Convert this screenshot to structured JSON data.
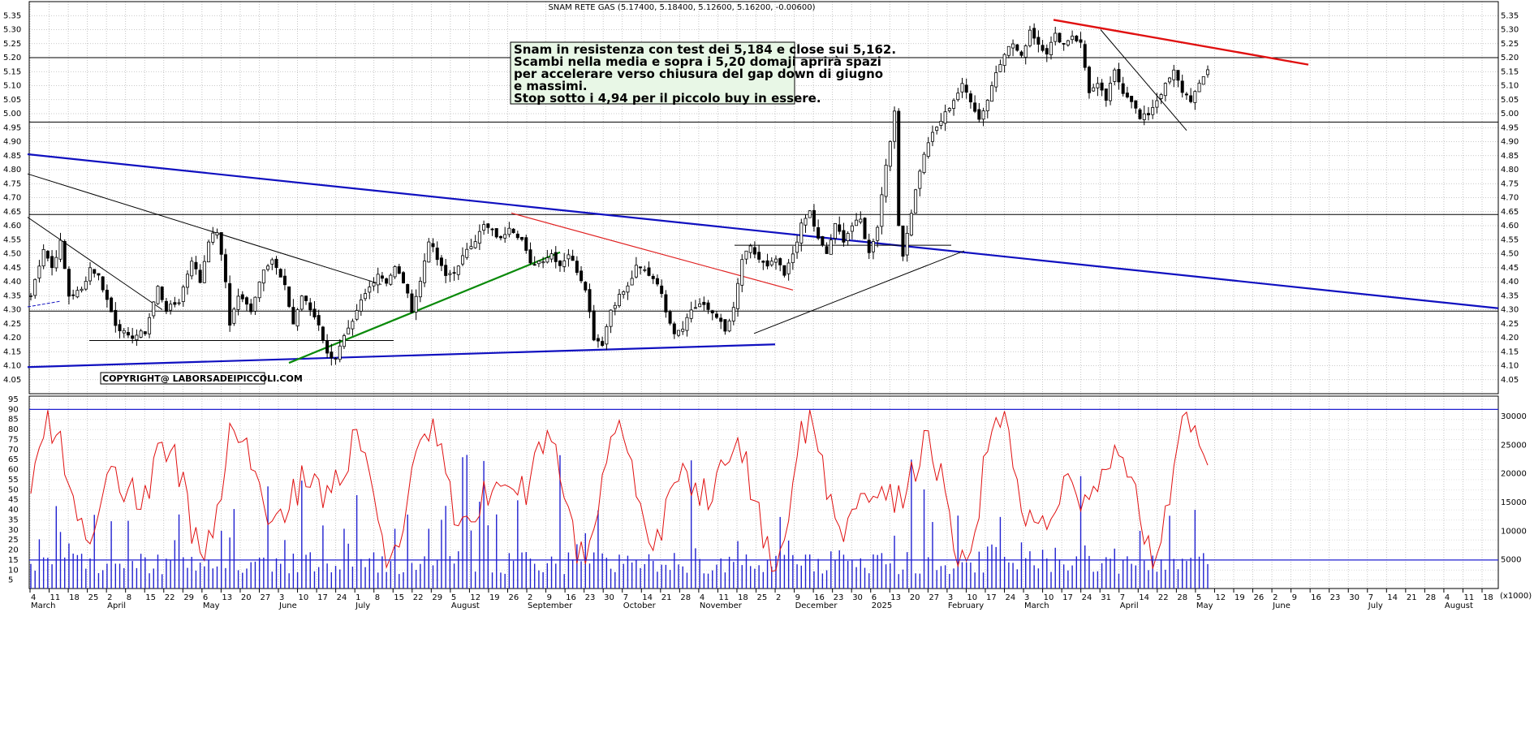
{
  "chart_data": [
    {
      "type": "candlestick",
      "title": "SNAM RETE GAS (5.17400, 5.18400, 5.12600, 5.16200, -0.00600)",
      "ylim": [
        4.0,
        5.4
      ],
      "yticks": [
        4.05,
        4.1,
        4.15,
        4.2,
        4.25,
        4.3,
        4.35,
        4.4,
        4.45,
        4.5,
        4.55,
        4.6,
        4.65,
        4.7,
        4.75,
        4.8,
        4.85,
        4.9,
        4.95,
        5.0,
        5.05,
        5.1,
        5.15,
        5.2,
        5.25,
        5.3,
        5.35
      ],
      "grid": true,
      "note": [
        "Snam in resistenza con test dei 5,184 e close sui 5,162.",
        "Scambi nella media e sopra i 5,20 domaji aprirà spazi",
        "per accelerare verso chiusura del gap down di giugno",
        "e massimi.",
        "Stop sotto i 4,94 per il piccolo buy in essere."
      ],
      "copyright": "COPYRIGHT@ LABORSADEIPICCOLI.COM",
      "horizontal_levels": [
        5.2,
        4.97,
        4.64,
        4.295
      ],
      "waypoints": [
        [
          0,
          4.35
        ],
        [
          3,
          4.52
        ],
        [
          5,
          4.45
        ],
        [
          7,
          4.54
        ],
        [
          9,
          4.35
        ],
        [
          12,
          4.37
        ],
        [
          14,
          4.45
        ],
        [
          16,
          4.42
        ],
        [
          20,
          4.25
        ],
        [
          23,
          4.2
        ],
        [
          27,
          4.22
        ],
        [
          30,
          4.38
        ],
        [
          32,
          4.3
        ],
        [
          35,
          4.33
        ],
        [
          38,
          4.48
        ],
        [
          40,
          4.4
        ],
        [
          42,
          4.55
        ],
        [
          44,
          4.58
        ],
        [
          46,
          4.4
        ],
        [
          47,
          4.25
        ],
        [
          49,
          4.35
        ],
        [
          52,
          4.3
        ],
        [
          55,
          4.45
        ],
        [
          57,
          4.48
        ],
        [
          60,
          4.38
        ],
        [
          62,
          4.25
        ],
        [
          64,
          4.35
        ],
        [
          66,
          4.3
        ],
        [
          68,
          4.25
        ],
        [
          70,
          4.14
        ],
        [
          72,
          4.13
        ],
        [
          74,
          4.2
        ],
        [
          76,
          4.25
        ],
        [
          78,
          4.33
        ],
        [
          80,
          4.38
        ],
        [
          82,
          4.43
        ],
        [
          84,
          4.4
        ],
        [
          86,
          4.45
        ],
        [
          88,
          4.4
        ],
        [
          90,
          4.3
        ],
        [
          92,
          4.4
        ],
        [
          94,
          4.55
        ],
        [
          96,
          4.48
        ],
        [
          98,
          4.42
        ],
        [
          101,
          4.45
        ],
        [
          103,
          4.52
        ],
        [
          105,
          4.55
        ],
        [
          107,
          4.6
        ],
        [
          109,
          4.58
        ],
        [
          111,
          4.55
        ],
        [
          113,
          4.6
        ],
        [
          116,
          4.55
        ],
        [
          118,
          4.46
        ],
        [
          121,
          4.48
        ],
        [
          123,
          4.5
        ],
        [
          125,
          4.46
        ],
        [
          127,
          4.5
        ],
        [
          129,
          4.44
        ],
        [
          131,
          4.38
        ],
        [
          133,
          4.2
        ],
        [
          135,
          4.18
        ],
        [
          137,
          4.3
        ],
        [
          139,
          4.35
        ],
        [
          141,
          4.38
        ],
        [
          143,
          4.45
        ],
        [
          145,
          4.44
        ],
        [
          148,
          4.4
        ],
        [
          150,
          4.3
        ],
        [
          152,
          4.22
        ],
        [
          154,
          4.24
        ],
        [
          156,
          4.3
        ],
        [
          158,
          4.32
        ],
        [
          160,
          4.3
        ],
        [
          162,
          4.28
        ],
        [
          164,
          4.22
        ],
        [
          166,
          4.3
        ],
        [
          168,
          4.48
        ],
        [
          170,
          4.52
        ],
        [
          172,
          4.48
        ],
        [
          174,
          4.45
        ],
        [
          176,
          4.48
        ],
        [
          178,
          4.42
        ],
        [
          180,
          4.5
        ],
        [
          182,
          4.6
        ],
        [
          184,
          4.65
        ],
        [
          186,
          4.55
        ],
        [
          188,
          4.5
        ],
        [
          190,
          4.6
        ],
        [
          192,
          4.55
        ],
        [
          194,
          4.6
        ],
        [
          196,
          4.62
        ],
        [
          198,
          4.5
        ],
        [
          200,
          4.6
        ],
        [
          202,
          4.82
        ],
        [
          204,
          5.0
        ],
        [
          205,
          4.6
        ],
        [
          206,
          4.5
        ],
        [
          208,
          4.65
        ],
        [
          210,
          4.8
        ],
        [
          212,
          4.9
        ],
        [
          214,
          4.95
        ],
        [
          216,
          5.0
        ],
        [
          218,
          5.05
        ],
        [
          220,
          5.1
        ],
        [
          222,
          5.05
        ],
        [
          224,
          4.98
        ],
        [
          226,
          5.05
        ],
        [
          228,
          5.15
        ],
        [
          230,
          5.22
        ],
        [
          232,
          5.25
        ],
        [
          234,
          5.2
        ],
        [
          236,
          5.3
        ],
        [
          238,
          5.25
        ],
        [
          240,
          5.22
        ],
        [
          242,
          5.28
        ],
        [
          244,
          5.25
        ],
        [
          246,
          5.28
        ],
        [
          248,
          5.25
        ],
        [
          250,
          5.08
        ],
        [
          252,
          5.1
        ],
        [
          254,
          5.05
        ],
        [
          256,
          5.15
        ],
        [
          258,
          5.08
        ],
        [
          260,
          5.05
        ],
        [
          262,
          4.98
        ],
        [
          264,
          5.0
        ],
        [
          266,
          5.05
        ],
        [
          268,
          5.1
        ],
        [
          270,
          5.15
        ],
        [
          272,
          5.08
        ],
        [
          274,
          5.05
        ],
        [
          276,
          5.1
        ],
        [
          278,
          5.16
        ]
      ],
      "volume_range": [
        0,
        31000
      ],
      "volume_ticks": [
        5000,
        10000,
        15000,
        20000,
        25000,
        30000
      ],
      "volume_unit": "(x1000)",
      "oscillator_range": [
        0,
        95
      ],
      "oscillator_ticks": [
        5,
        10,
        15,
        20,
        25,
        30,
        35,
        40,
        45,
        50,
        55,
        60,
        65,
        70,
        75,
        80,
        85,
        90,
        95
      ],
      "oscillator_levels": [
        90,
        15
      ],
      "x_day_ticks": [
        "4",
        "11",
        "18",
        "25",
        "2",
        "8",
        "15",
        "22",
        "29",
        "6",
        "13",
        "20",
        "27",
        "3",
        "10",
        "17",
        "24",
        "1",
        "8",
        "15",
        "22",
        "29",
        "5",
        "12",
        "19",
        "26",
        "2",
        "9",
        "16",
        "23",
        "30",
        "7",
        "14",
        "21",
        "28",
        "4",
        "11",
        "18",
        "25",
        "2",
        "9",
        "16",
        "23",
        "30",
        "6",
        "13",
        "20",
        "27",
        "3",
        "10",
        "17",
        "24",
        "3",
        "10",
        "17",
        "24",
        "31",
        "7",
        "14",
        "22",
        "28",
        "5",
        "12",
        "19",
        "26",
        "2",
        "9",
        "16",
        "23",
        "30",
        "7",
        "14",
        "21",
        "28",
        "4",
        "11",
        "18"
      ],
      "x_month_labels": [
        "March",
        "April",
        "May",
        "June",
        "July",
        "August",
        "September",
        "October",
        "November",
        "December",
        "2025",
        "February",
        "March",
        "April",
        "May",
        "June",
        "July",
        "August"
      ]
    }
  ]
}
